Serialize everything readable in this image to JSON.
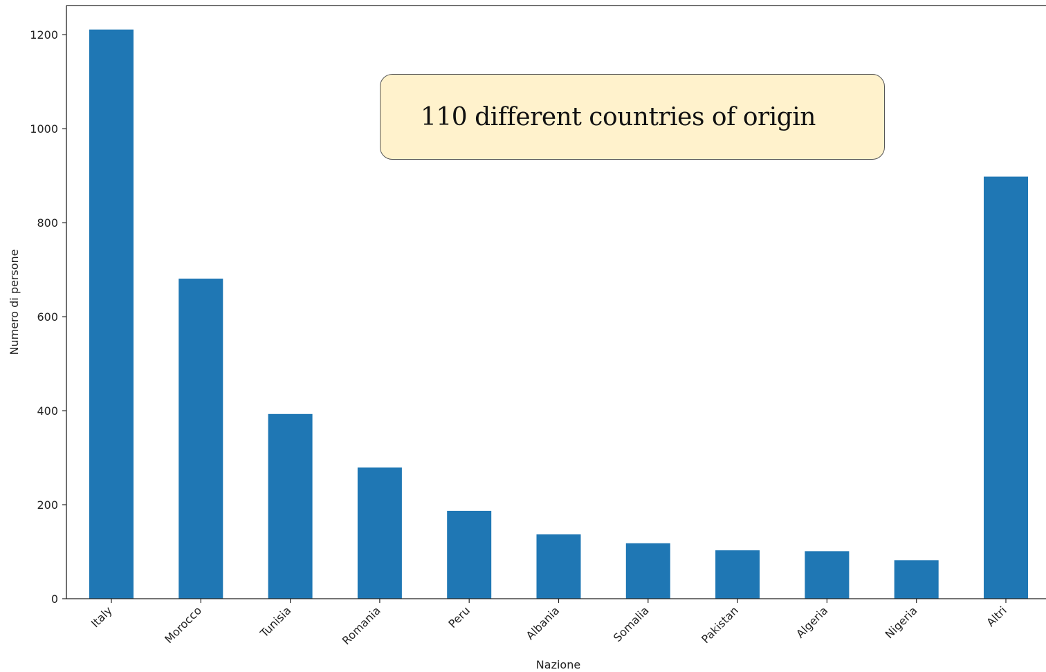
{
  "chart_data": {
    "type": "bar",
    "categories": [
      "Italy",
      "Morocco",
      "Tunisia",
      "Romania",
      "Peru",
      "Albania",
      "Somalia",
      "Pakistan",
      "Algeria",
      "Nigeria",
      "Altri"
    ],
    "values": [
      1211,
      681,
      393,
      279,
      187,
      137,
      118,
      103,
      101,
      82,
      898
    ],
    "xlabel": "Nazione",
    "ylabel": "Numero di persone",
    "ylim": [
      0,
      1262
    ],
    "yticks": [
      0,
      200,
      400,
      600,
      800,
      1000,
      1200
    ],
    "bar_color": "#1f77b4",
    "grid": false,
    "annotation": "110 different countries of origin",
    "annotation_bg": "#fff2cc"
  }
}
